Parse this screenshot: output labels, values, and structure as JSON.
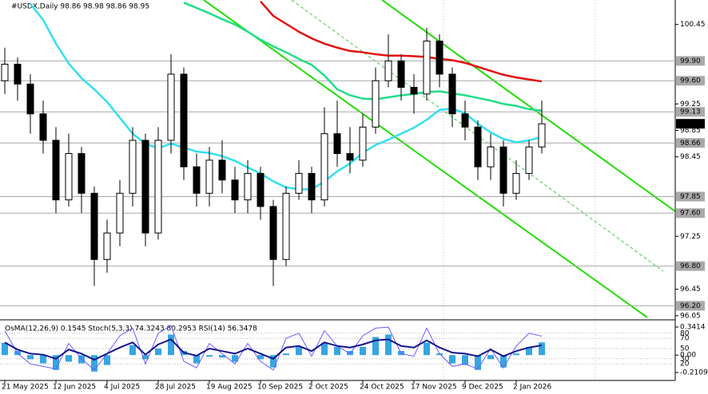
{
  "chart_data": [
    {
      "type": "candlestick",
      "title": "#USDX,Daily  98.86 98.98 98.86 98.95",
      "categories": [
        "21 May 2025",
        null,
        null,
        null,
        "12 Jun 2025",
        null,
        null,
        null,
        "4 Jul 2025",
        null,
        null,
        null,
        "28 Jul 2025",
        null,
        null,
        null,
        "19 Aug 2025",
        null,
        null,
        null,
        "10 Sep 2025",
        null,
        null,
        null,
        "2 Oct 2025",
        null,
        null,
        null,
        "24 Oct 2025",
        null,
        null,
        null,
        "17 Nov 2025",
        null,
        null,
        null,
        "9 Dec 2025",
        null,
        null,
        null,
        "2 Jan 2026",
        null,
        null
      ],
      "open": [
        99.6,
        99.85,
        99.55,
        99.1,
        98.7,
        97.8,
        98.5,
        97.9,
        96.9,
        97.3,
        97.9,
        98.7,
        97.3,
        98.7,
        99.7,
        98.3,
        97.9,
        98.4,
        98.1,
        97.8,
        98.2,
        97.7,
        96.9,
        97.9,
        98.2,
        97.8,
        98.8,
        98.5,
        98.4,
        98.9,
        99.6,
        99.9,
        99.5,
        99.4,
        100.2,
        99.7,
        99.1,
        98.9,
        98.3,
        98.6,
        97.9,
        98.2,
        98.6
      ],
      "high": [
        100.1,
        99.95,
        99.7,
        99.3,
        98.9,
        98.8,
        98.6,
        98.0,
        97.5,
        98.1,
        98.9,
        98.8,
        98.9,
        100.0,
        99.8,
        98.5,
        98.6,
        98.7,
        98.3,
        98.4,
        98.3,
        97.8,
        98.0,
        98.4,
        98.3,
        99.2,
        99.3,
        98.9,
        99.1,
        99.8,
        100.3,
        100.0,
        99.7,
        100.4,
        100.3,
        99.8,
        99.3,
        99.0,
        98.8,
        98.7,
        98.4,
        98.7,
        99.3
      ],
      "low": [
        99.4,
        99.3,
        98.8,
        98.5,
        97.6,
        97.7,
        97.6,
        96.5,
        96.7,
        97.1,
        97.7,
        97.1,
        97.2,
        98.5,
        98.1,
        97.7,
        97.7,
        97.9,
        97.6,
        97.6,
        97.5,
        96.5,
        96.8,
        97.8,
        97.6,
        97.7,
        98.3,
        98.2,
        98.3,
        98.8,
        99.5,
        99.3,
        99.1,
        99.3,
        99.5,
        98.9,
        98.7,
        98.1,
        98.1,
        97.7,
        97.8,
        98.1,
        98.5
      ],
      "close": [
        99.85,
        99.55,
        99.1,
        98.7,
        97.8,
        98.5,
        97.9,
        96.9,
        97.3,
        97.9,
        98.7,
        97.3,
        98.7,
        99.7,
        98.3,
        97.9,
        98.4,
        98.1,
        97.8,
        98.2,
        97.7,
        96.9,
        97.9,
        98.2,
        97.8,
        98.8,
        98.5,
        98.4,
        98.9,
        99.6,
        99.9,
        99.5,
        99.4,
        100.2,
        99.7,
        99.1,
        98.9,
        98.3,
        98.6,
        97.9,
        98.2,
        98.6,
        98.95
      ],
      "moving_averages": [
        {
          "color": "#e01010",
          "values": [
            null,
            null,
            null,
            null,
            null,
            null,
            null,
            null,
            null,
            null,
            null,
            null,
            null,
            null,
            null,
            null,
            null,
            null,
            null,
            null,
            100.8,
            100.58,
            100.46,
            100.34,
            100.24,
            100.16,
            100.1,
            100.05,
            100.03,
            100.0,
            99.98,
            99.98,
            99.97,
            99.96,
            99.93,
            99.91,
            99.87,
            99.81,
            99.75,
            99.69,
            99.65,
            99.62,
            99.59
          ]
        },
        {
          "color": "#22dd88",
          "values": [
            null,
            null,
            null,
            null,
            null,
            null,
            null,
            null,
            null,
            null,
            null,
            null,
            null,
            null,
            100.78,
            100.7,
            100.62,
            100.53,
            100.45,
            100.34,
            100.22,
            100.12,
            100.03,
            99.93,
            99.84,
            99.68,
            99.47,
            99.38,
            99.33,
            99.32,
            99.35,
            99.38,
            99.4,
            99.43,
            99.44,
            99.41,
            99.38,
            99.34,
            99.3,
            99.25,
            99.22,
            99.17,
            99.15
          ]
        },
        {
          "color": "#33e0ee",
          "values": [
            null,
            null,
            100.76,
            100.52,
            100.16,
            99.86,
            99.64,
            99.47,
            99.28,
            99.04,
            98.8,
            98.65,
            98.58,
            98.65,
            98.59,
            98.53,
            98.51,
            98.46,
            98.39,
            98.29,
            98.2,
            98.08,
            97.99,
            97.96,
            97.96,
            98.08,
            98.23,
            98.35,
            98.51,
            98.63,
            98.71,
            98.8,
            98.89,
            99.01,
            99.16,
            99.18,
            99.11,
            98.95,
            98.82,
            98.72,
            98.67,
            98.7,
            98.75
          ]
        }
      ],
      "ylim": [
        96.0,
        100.82
      ],
      "yticks": [
        100.45,
        99.25,
        98.85,
        98.45,
        97.25,
        96.45,
        96.05
      ],
      "level_ticks": [
        {
          "value": 99.9,
          "label": "99.90"
        },
        {
          "value": 99.6,
          "label": "99.60"
        },
        99.13,
        98.66,
        97.85,
        {
          "value": 97.6,
          "label": "97.60"
        },
        {
          "value": 96.8,
          "label": "96.80"
        },
        {
          "value": 96.2,
          "label": "96.20"
        }
      ],
      "price_label": 98.95,
      "up_color": "#ffffff",
      "down_color": "#000000",
      "level_color": "#a9a9a9"
    },
    {
      "type": "oscillator",
      "title": "OsMA(12,26,9) 0.1545  Stoch(5,3,3) 74.3243 80.2953  RSI(14) 56.3478",
      "series": [
        {
          "color": "#35a6e0",
          "style": "histogram",
          "axis": "y2",
          "values": [
            0.15,
            0.05,
            -0.05,
            -0.1,
            -0.18,
            -0.08,
            -0.1,
            -0.2,
            -0.12,
            0.0,
            0.12,
            -0.05,
            0.08,
            0.25,
            0.05,
            -0.1,
            -0.02,
            -0.03,
            -0.08,
            0.0,
            -0.05,
            -0.15,
            0.02,
            0.1,
            0.0,
            0.15,
            0.1,
            0.05,
            0.1,
            0.22,
            0.25,
            0.05,
            0.0,
            0.15,
            0.02,
            -0.1,
            -0.12,
            -0.18,
            -0.05,
            -0.15,
            0.02,
            0.1,
            0.1545
          ]
        },
        {
          "color": "#6a5cff",
          "style": "line",
          "values": [
            85,
            40,
            20,
            15,
            10,
            60,
            30,
            8,
            40,
            75,
            90,
            20,
            80,
            95,
            25,
            12,
            60,
            40,
            20,
            60,
            25,
            8,
            70,
            80,
            35,
            85,
            55,
            40,
            75,
            90,
            92,
            40,
            35,
            90,
            40,
            15,
            20,
            10,
            50,
            12,
            55,
            80,
            74.3243
          ]
        },
        {
          "color": "#16168a",
          "style": "line",
          "values": [
            62,
            48,
            40,
            38,
            30,
            48,
            40,
            28,
            40,
            52,
            62,
            38,
            58,
            68,
            42,
            36,
            50,
            45,
            40,
            50,
            40,
            30,
            52,
            55,
            45,
            62,
            55,
            52,
            58,
            66,
            68,
            55,
            52,
            66,
            52,
            42,
            40,
            35,
            48,
            35,
            45,
            52,
            56.3478
          ]
        }
      ],
      "ylim": [
        0,
        100
      ],
      "yticks": [
        80,
        70,
        50,
        30,
        20
      ],
      "y2lim": [
        -0.2303,
        0.3899
      ],
      "y2ticks": [
        0.3414,
        {
          "value": 0,
          "label": "0.00"
        },
        -0.2109
      ]
    }
  ]
}
